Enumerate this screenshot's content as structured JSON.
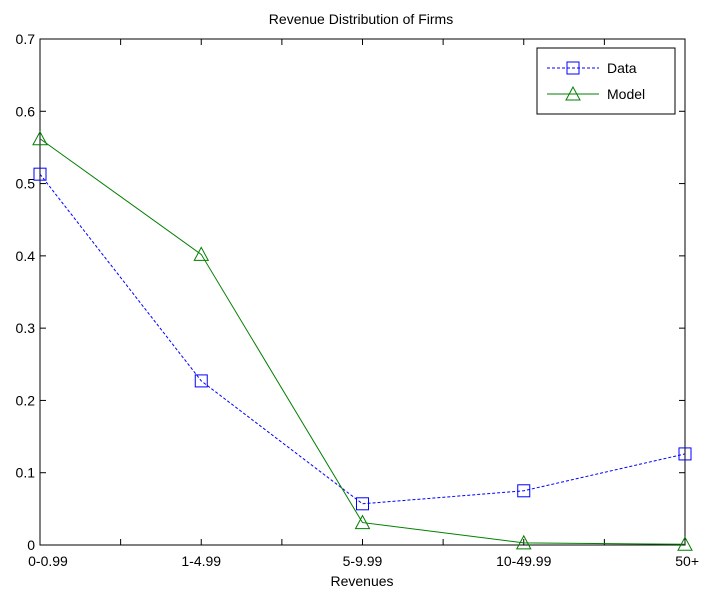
{
  "chart_data": {
    "type": "line",
    "title": "Revenue Distribution of Firms",
    "xlabel": "Revenues",
    "ylabel": "",
    "categories": [
      "0-0.99",
      "1-4.99",
      "5-9.99",
      "10-49.99",
      "50+"
    ],
    "ylim": [
      0,
      0.7
    ],
    "yticks": [
      0,
      0.1,
      0.2,
      0.3,
      0.4,
      0.5,
      0.6,
      0.7
    ],
    "ytick_labels": [
      "0",
      "0.1",
      "0.2",
      "0.3",
      "0.4",
      "0.5",
      "0.6",
      "0.7"
    ],
    "grid": false,
    "legend_position": "top-right",
    "series": [
      {
        "name": "Data",
        "values": [
          0.513,
          0.227,
          0.057,
          0.075,
          0.126
        ],
        "color": "#0000ff",
        "line_style": "dashed",
        "marker": "square"
      },
      {
        "name": "Model",
        "values": [
          0.562,
          0.402,
          0.031,
          0.003,
          0.001
        ],
        "color": "#007f00",
        "line_style": "solid",
        "marker": "triangle"
      }
    ]
  }
}
